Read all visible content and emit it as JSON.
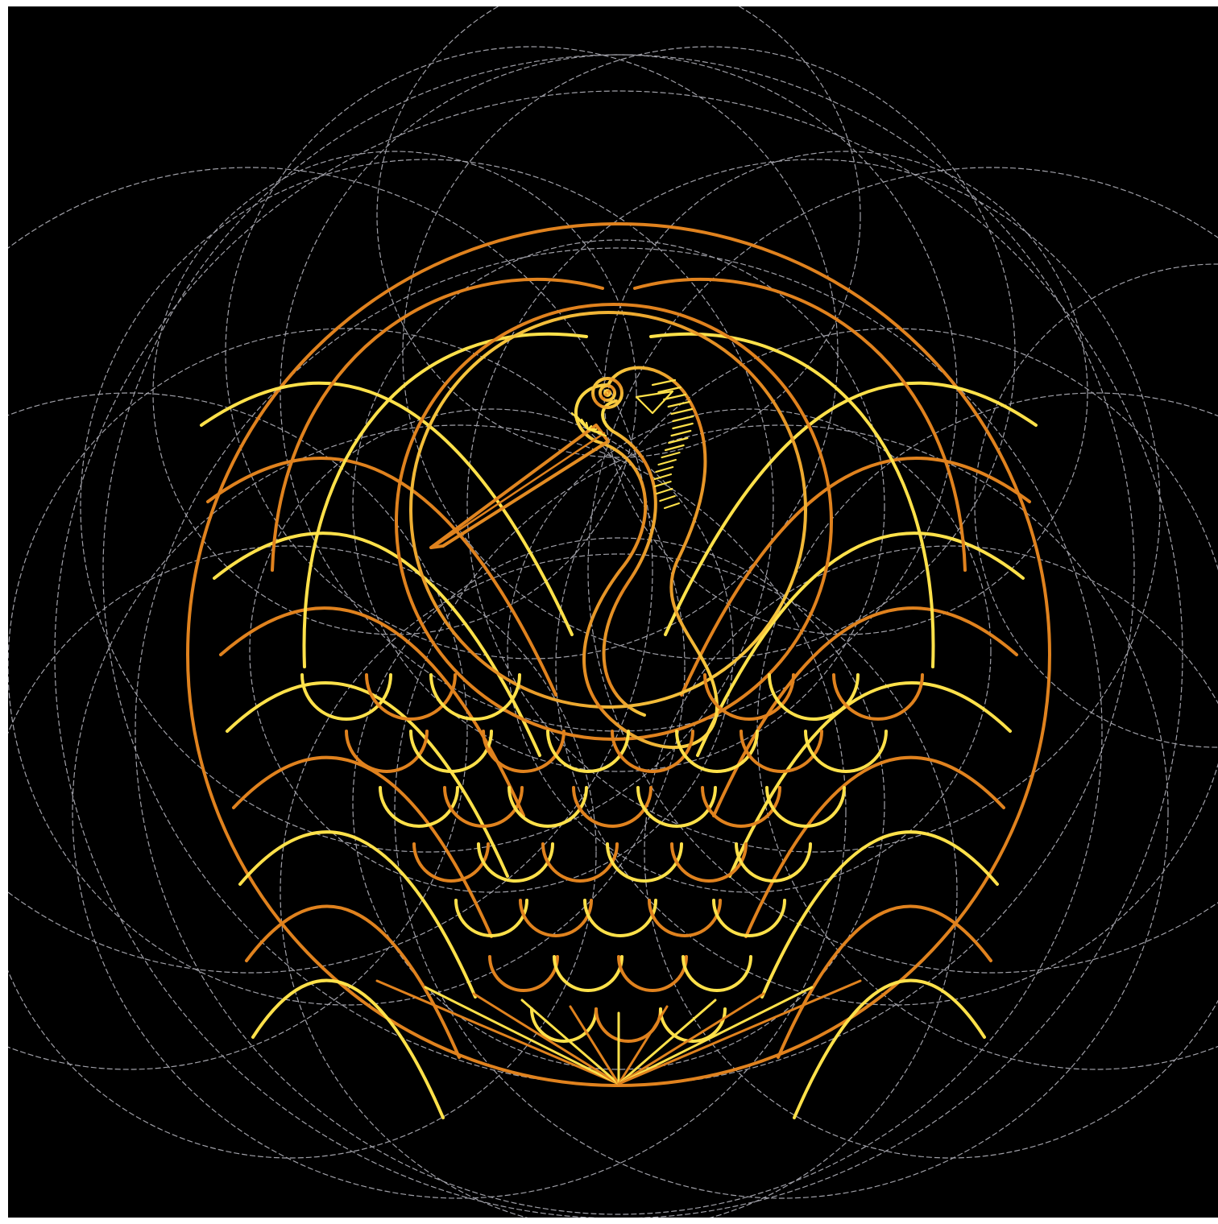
{
  "artwork": {
    "subject": "crane-crest",
    "colors": {
      "background": "#000000",
      "construction_lines": "#bdbdc6",
      "gold_light": "#ffe14a",
      "gold_dark": "#e0821e"
    }
  }
}
